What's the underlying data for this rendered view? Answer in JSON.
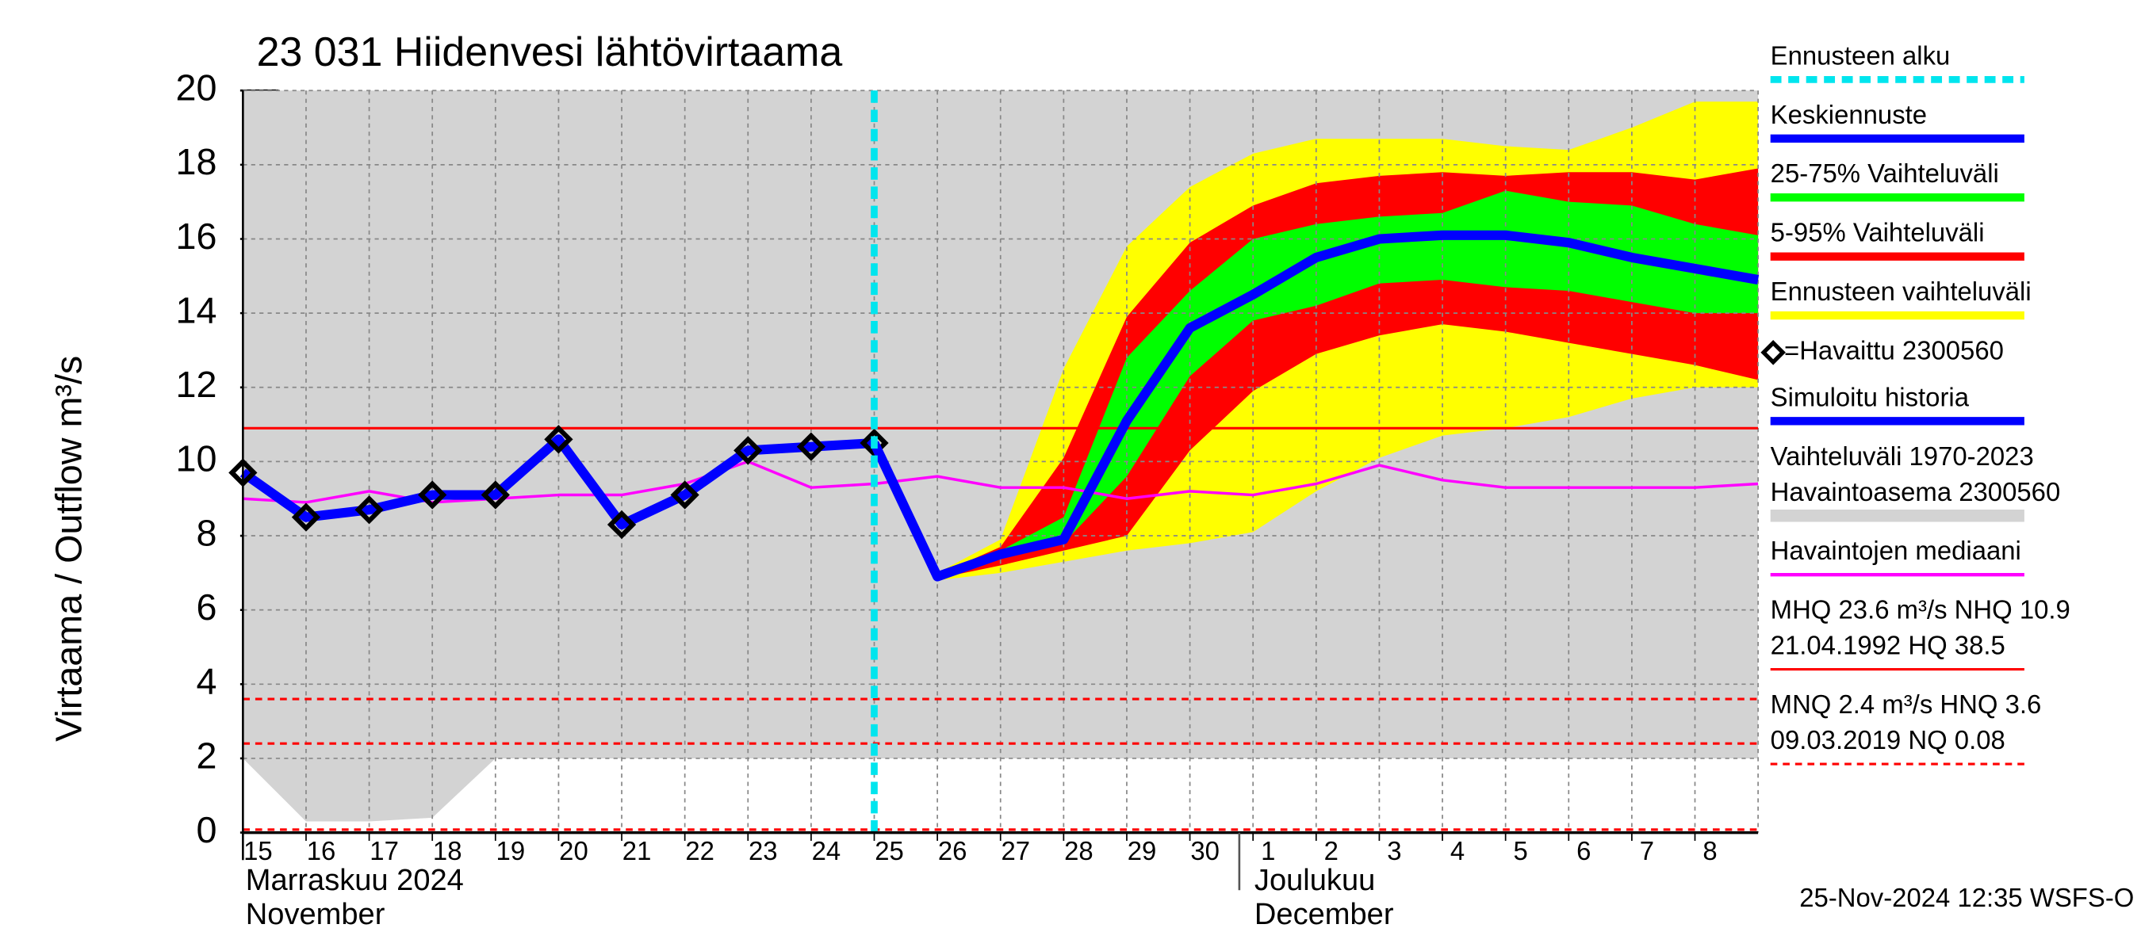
{
  "chart_data": {
    "type": "line",
    "title": "23 031 Hiidenvesi lähtövirtaama",
    "y_label": "Virtaama / Outflow    m³/s",
    "categories": [
      "15",
      "16",
      "17",
      "18",
      "19",
      "20",
      "21",
      "22",
      "23",
      "24",
      "25",
      "26",
      "27",
      "28",
      "29",
      "30",
      "1",
      "2",
      "3",
      "4",
      "5",
      "6",
      "7",
      "8",
      null
    ],
    "months": [
      {
        "lines": [
          "Marraskuu 2024",
          "November"
        ],
        "category": "15"
      },
      {
        "lines": [
          "Joulukuu",
          "December"
        ],
        "category": "1"
      }
    ],
    "ylim": [
      0,
      20
    ],
    "yticks": [
      0,
      2,
      4,
      6,
      8,
      10,
      12,
      14,
      16,
      18,
      20
    ],
    "grid": true,
    "forecast_start": {
      "label": "Ennusteen alku",
      "category": "25",
      "color": "#00e5ee"
    },
    "series": [
      {
        "name": "Keskiennuste",
        "color": "#0000ff",
        "kind": "line",
        "values": [
          null,
          null,
          null,
          null,
          null,
          null,
          null,
          null,
          null,
          null,
          10.5,
          6.9,
          7.5,
          7.9,
          11.1,
          13.6,
          14.5,
          15.5,
          16.0,
          16.1,
          16.1,
          15.9,
          15.5,
          15.2,
          14.9
        ]
      },
      {
        "name": "25-75% Vaihteluväli",
        "color": "#00ff00",
        "kind": "band",
        "upper": [
          null,
          null,
          null,
          null,
          null,
          null,
          null,
          null,
          null,
          null,
          null,
          6.9,
          7.6,
          8.5,
          12.8,
          14.6,
          16.0,
          16.4,
          16.6,
          16.7,
          17.3,
          17.0,
          16.9,
          16.4,
          16.1
        ],
        "lower": [
          null,
          null,
          null,
          null,
          null,
          null,
          null,
          null,
          null,
          null,
          null,
          6.9,
          7.4,
          7.8,
          9.6,
          12.3,
          13.8,
          14.2,
          14.8,
          14.9,
          14.7,
          14.6,
          14.3,
          14.0,
          14.0
        ]
      },
      {
        "name": "5-95% Vaihteluväli",
        "color": "#ff0000",
        "kind": "band",
        "upper": [
          null,
          null,
          null,
          null,
          null,
          null,
          null,
          null,
          null,
          null,
          null,
          6.95,
          7.7,
          10.1,
          13.9,
          15.9,
          16.9,
          17.5,
          17.7,
          17.8,
          17.7,
          17.8,
          17.8,
          17.6,
          17.9
        ],
        "lower": [
          null,
          null,
          null,
          null,
          null,
          null,
          null,
          null,
          null,
          null,
          null,
          6.85,
          7.2,
          7.6,
          8.0,
          10.3,
          11.9,
          12.9,
          13.4,
          13.7,
          13.5,
          13.2,
          12.9,
          12.6,
          12.2
        ]
      },
      {
        "name": "Ennusteen vaihteluväli",
        "color": "#ffff00",
        "kind": "band",
        "upper": [
          null,
          null,
          null,
          null,
          null,
          null,
          null,
          null,
          null,
          null,
          null,
          7.0,
          7.9,
          12.5,
          15.8,
          17.4,
          18.3,
          18.7,
          18.7,
          18.7,
          18.5,
          18.4,
          19.0,
          19.7,
          19.7
        ],
        "lower": [
          null,
          null,
          null,
          null,
          null,
          null,
          null,
          null,
          null,
          null,
          null,
          6.8,
          7.0,
          7.3,
          7.6,
          7.8,
          8.1,
          9.2,
          10.1,
          10.7,
          10.9,
          11.2,
          11.7,
          12.0,
          12.0
        ]
      },
      {
        "name": "=Havaittu 2300560",
        "color": "#000000",
        "kind": "marker",
        "values": [
          9.7,
          8.5,
          8.7,
          9.1,
          9.1,
          10.6,
          8.3,
          9.1,
          10.3,
          10.4,
          10.5,
          null,
          null,
          null,
          null,
          null,
          null,
          null,
          null,
          null,
          null,
          null,
          null,
          null,
          null
        ]
      },
      {
        "name": "Simuloitu historia",
        "color": "#0000ff",
        "kind": "line",
        "values": [
          9.7,
          8.5,
          8.7,
          9.1,
          9.1,
          10.6,
          8.3,
          9.1,
          10.3,
          10.4,
          10.5,
          null,
          null,
          null,
          null,
          null,
          null,
          null,
          null,
          null,
          null,
          null,
          null,
          null,
          null
        ]
      },
      {
        "name": [
          "Vaihteluväli 1970-2023",
          " Havaintoasema 2300560"
        ],
        "color": "#d3d3d3",
        "kind": "band",
        "upper": [
          20,
          20,
          20,
          20,
          20,
          20,
          20,
          20,
          20,
          20,
          20,
          20,
          20,
          20,
          20,
          20,
          20,
          20,
          20,
          20,
          20,
          20,
          20,
          20,
          20
        ],
        "lower": [
          2.0,
          0.3,
          0.3,
          0.4,
          2.0,
          2.0,
          2.0,
          2.0,
          2.0,
          2.0,
          2.0,
          2.0,
          2.0,
          2.0,
          2.0,
          2.0,
          2.0,
          2.0,
          2.0,
          2.0,
          2.0,
          2.0,
          2.0,
          2.0,
          2.0
        ]
      },
      {
        "name": "Havaintojen mediaani",
        "color": "#ff00ff",
        "kind": "thin",
        "values": [
          9.0,
          8.9,
          9.2,
          8.9,
          9.0,
          9.1,
          9.1,
          9.4,
          10.0,
          9.3,
          9.4,
          9.6,
          9.3,
          9.3,
          9.0,
          9.2,
          9.1,
          9.4,
          9.9,
          9.5,
          9.3,
          9.3,
          9.3,
          9.3,
          9.4
        ]
      }
    ],
    "reference_lines": [
      {
        "label": [
          "MHQ 23.6 m³/s NHQ 10.9",
          "21.04.1992 HQ 38.5"
        ],
        "color": "#ff0000",
        "dashed": false,
        "values": [
          10.9
        ]
      },
      {
        "label": [
          "MNQ  2.4 m³/s HNQ  3.6",
          "09.03.2019 NQ 0.08"
        ],
        "color": "#ff0000",
        "dashed": true,
        "values": [
          3.6,
          2.4,
          0.08
        ]
      }
    ],
    "footer": "25-Nov-2024 12:35 WSFS-O"
  }
}
